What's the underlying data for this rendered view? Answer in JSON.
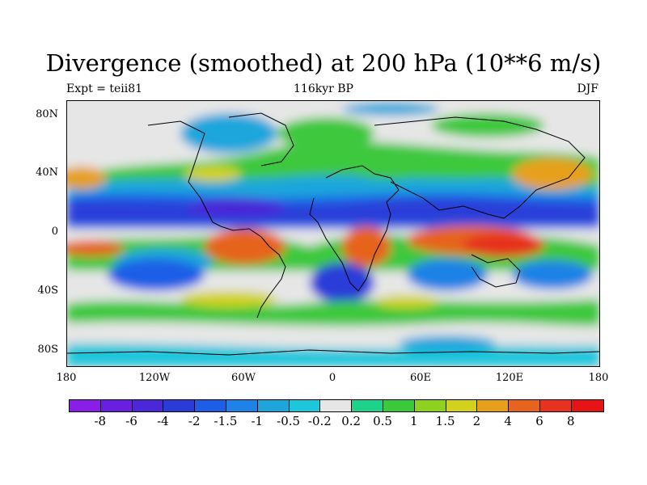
{
  "title": "Divergence (smoothed) at 200 hPa (10**6 m/s)",
  "subtitle_left": "Expt = teii81",
  "subtitle_center": "116kyr BP",
  "subtitle_right": "DJF",
  "lat_labels": [
    "80N",
    "40N",
    "0",
    "40S",
    "80S"
  ],
  "lon_labels": [
    "180",
    "120W",
    "60W",
    "0",
    "60E",
    "120E",
    "180"
  ],
  "colorbar": {
    "labels": [
      "-8",
      "-6",
      "-4",
      "-2",
      "-1.5",
      "-1",
      "-0.5",
      "-0.2",
      "0.2",
      "0.5",
      "1",
      "1.5",
      "2",
      "4",
      "6",
      "8"
    ],
    "colors": [
      "#8a1ee6",
      "#6a1ee0",
      "#4a28d8",
      "#2a3cd8",
      "#1e5ee6",
      "#1e82e6",
      "#1ea6dc",
      "#1ec6dc",
      "#e6e6e6",
      "#1ed28c",
      "#3cc83c",
      "#8cd21e",
      "#d2d21e",
      "#e6a01e",
      "#e6641e",
      "#e6321e",
      "#e61414"
    ]
  }
}
